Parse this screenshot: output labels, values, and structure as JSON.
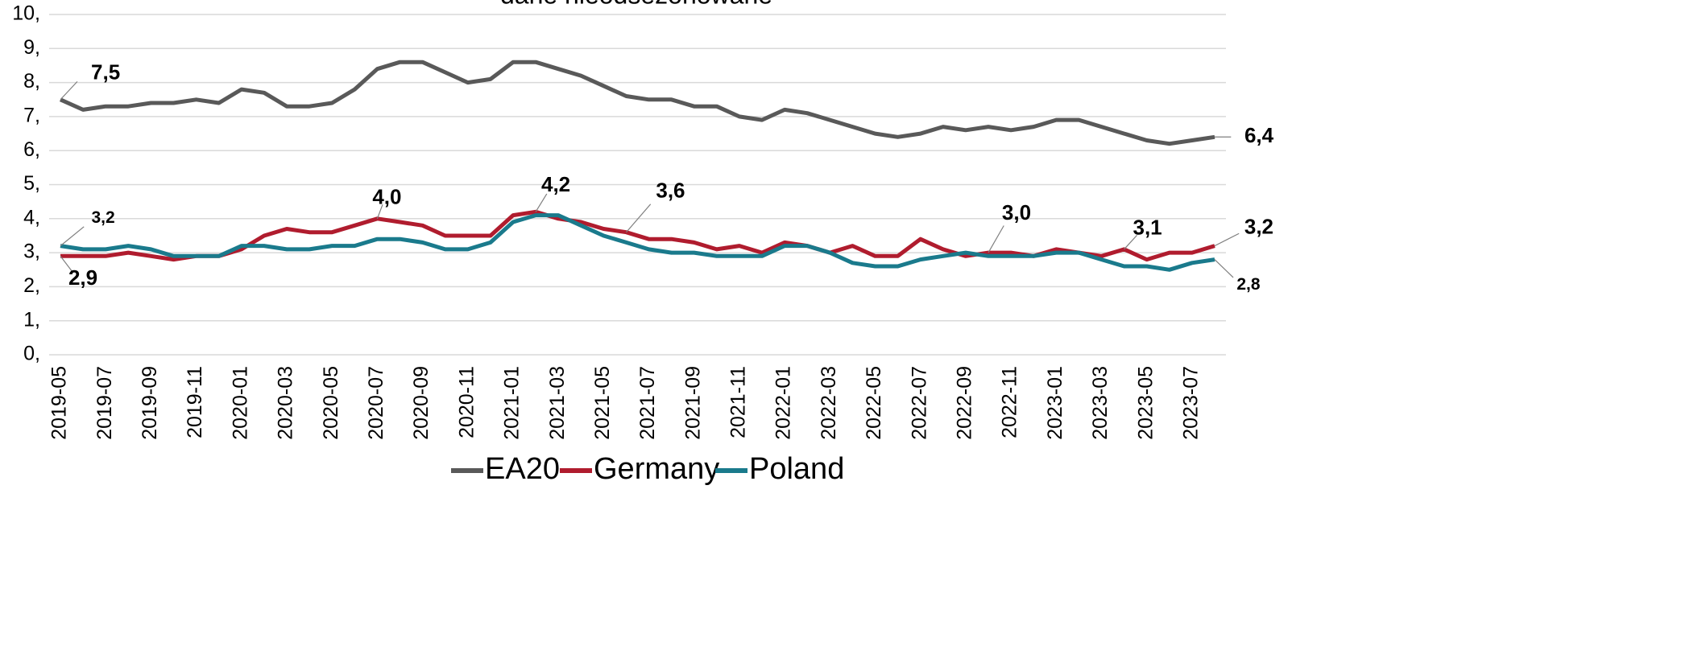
{
  "chart_data": {
    "type": "line",
    "title": "dane nieodsezonowane",
    "categories": [
      "2019-05",
      null,
      "2019-07",
      null,
      "2019-09",
      null,
      "2019-11",
      null,
      "2020-01",
      null,
      "2020-03",
      null,
      "2020-05",
      null,
      "2020-07",
      null,
      "2020-09",
      null,
      "2020-11",
      null,
      "2021-01",
      null,
      "2021-03",
      null,
      "2021-05",
      null,
      "2021-07",
      null,
      "2021-09",
      null,
      "2021-11",
      null,
      "2022-01",
      null,
      "2022-03",
      null,
      "2022-05",
      null,
      "2022-07",
      null,
      "2022-09",
      null,
      "2022-11",
      null,
      "2023-01",
      null,
      "2023-03",
      null,
      "2023-05",
      null,
      "2023-07",
      null
    ],
    "series": [
      {
        "name": "EA20",
        "color": "#595959",
        "values": [
          7.5,
          7.2,
          7.3,
          7.3,
          7.4,
          7.4,
          7.5,
          7.4,
          7.8,
          7.7,
          7.3,
          7.3,
          7.4,
          7.8,
          8.4,
          8.6,
          8.6,
          8.3,
          8.0,
          8.1,
          8.6,
          8.6,
          8.4,
          8.2,
          7.9,
          7.6,
          7.5,
          7.5,
          7.3,
          7.3,
          7.0,
          6.9,
          7.2,
          7.1,
          6.9,
          6.7,
          6.5,
          6.4,
          6.5,
          6.7,
          6.6,
          6.7,
          6.6,
          6.7,
          6.9,
          6.9,
          6.7,
          6.5,
          6.3,
          6.2,
          6.3,
          6.4
        ],
        "value_labels": [
          "7,5",
          null,
          null,
          null,
          null,
          null,
          null,
          null,
          null,
          null,
          null,
          null,
          null,
          null,
          null,
          null,
          null,
          null,
          null,
          null,
          null,
          null,
          null,
          null,
          null,
          null,
          null,
          null,
          null,
          null,
          null,
          null,
          null,
          null,
          null,
          null,
          null,
          null,
          null,
          null,
          null,
          null,
          null,
          null,
          null,
          null,
          null,
          null,
          null,
          null,
          null,
          "6,4"
        ]
      },
      {
        "name": "Germany",
        "color": "#b01c2e",
        "values": [
          2.9,
          2.9,
          2.9,
          3.0,
          2.9,
          2.8,
          2.9,
          2.9,
          3.1,
          3.5,
          3.7,
          3.6,
          3.6,
          3.8,
          4.0,
          3.9,
          3.8,
          3.5,
          3.5,
          3.5,
          4.1,
          4.2,
          4.0,
          3.9,
          3.7,
          3.6,
          3.4,
          3.4,
          3.3,
          3.1,
          3.2,
          3.0,
          3.3,
          3.2,
          3.0,
          3.2,
          2.9,
          2.9,
          3.4,
          3.1,
          2.9,
          3.0,
          3.0,
          2.9,
          3.1,
          3.0,
          2.9,
          3.1,
          2.8,
          3.0,
          3.0,
          3.2
        ],
        "value_labels": [
          "2,9",
          null,
          null,
          null,
          null,
          null,
          null,
          null,
          null,
          null,
          null,
          null,
          null,
          null,
          "4,0",
          null,
          null,
          null,
          null,
          null,
          null,
          "4,2",
          null,
          null,
          null,
          "3,6",
          null,
          null,
          null,
          null,
          null,
          null,
          null,
          null,
          null,
          null,
          null,
          null,
          null,
          null,
          null,
          "3,0",
          null,
          null,
          null,
          null,
          null,
          "3,1",
          null,
          null,
          null,
          "3,2"
        ]
      },
      {
        "name": "Poland",
        "color": "#1a7a8c",
        "values": [
          3.2,
          3.1,
          3.1,
          3.2,
          3.1,
          2.9,
          2.9,
          2.9,
          3.2,
          3.2,
          3.1,
          3.1,
          3.2,
          3.2,
          3.4,
          3.4,
          3.3,
          3.1,
          3.1,
          3.3,
          3.9,
          4.1,
          4.1,
          3.8,
          3.5,
          3.3,
          3.1,
          3.0,
          3.0,
          2.9,
          2.9,
          2.9,
          3.2,
          3.2,
          3.0,
          2.7,
          2.6,
          2.6,
          2.8,
          2.9,
          3.0,
          2.9,
          2.9,
          2.9,
          3.0,
          3.0,
          2.8,
          2.6,
          2.6,
          2.5,
          2.7,
          2.8
        ],
        "value_labels": [
          "3,2",
          null,
          null,
          null,
          null,
          null,
          null,
          null,
          null,
          null,
          null,
          null,
          null,
          null,
          null,
          null,
          null,
          null,
          null,
          null,
          null,
          null,
          null,
          null,
          null,
          null,
          null,
          null,
          null,
          null,
          null,
          null,
          null,
          null,
          null,
          null,
          null,
          null,
          null,
          null,
          null,
          null,
          null,
          null,
          null,
          null,
          null,
          null,
          null,
          null,
          null,
          "2,8"
        ]
      }
    ],
    "ylim": [
      0,
      10
    ],
    "yticks": [
      {
        "value": 0,
        "label": "0,"
      },
      {
        "value": 1,
        "label": "1,"
      },
      {
        "value": 2,
        "label": "2,"
      },
      {
        "value": 3,
        "label": "3,"
      },
      {
        "value": 4,
        "label": "4,"
      },
      {
        "value": 5,
        "label": "5,"
      },
      {
        "value": 6,
        "label": "6,"
      },
      {
        "value": 7,
        "label": "7,"
      },
      {
        "value": 8,
        "label": "8,"
      },
      {
        "value": 9,
        "label": "9,"
      },
      {
        "value": 10,
        "label": "10,"
      }
    ],
    "grid": true,
    "legend": "bottom"
  }
}
